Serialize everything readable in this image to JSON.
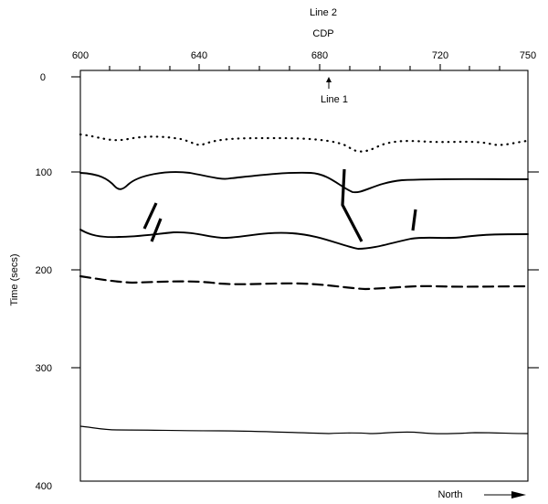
{
  "header": {
    "line_label": "Line 2",
    "axis_title": "CDP"
  },
  "x_axis": {
    "ticks": [
      "600",
      "640",
      "680",
      "720",
      "750"
    ]
  },
  "y_axis": {
    "label": "Time (secs)",
    "ticks": [
      "0",
      "100",
      "200",
      "300",
      "400"
    ]
  },
  "annotations": {
    "line1": "Line 1",
    "north": "North"
  }
}
